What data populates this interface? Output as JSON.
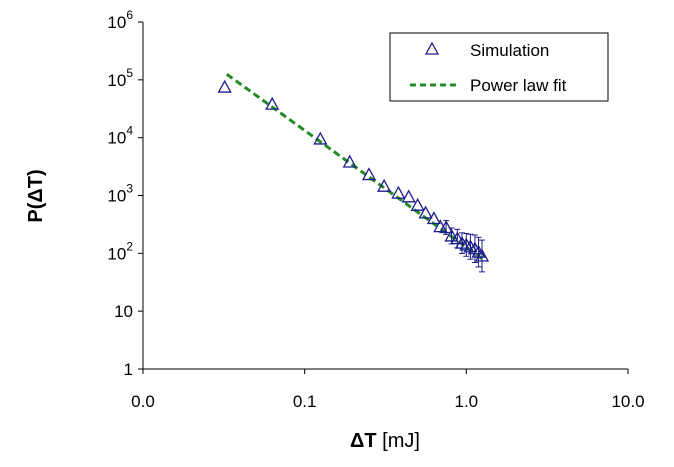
{
  "chart_data": {
    "type": "scatter",
    "xscale": "log",
    "yscale": "log",
    "xlim": [
      0.01,
      10
    ],
    "ylim": [
      1,
      1000000
    ],
    "xticks": [
      {
        "value": 0.01,
        "label": "0.0"
      },
      {
        "value": 0.1,
        "label": "0.1"
      },
      {
        "value": 1,
        "label": "1.0"
      },
      {
        "value": 10,
        "label": "10.0"
      }
    ],
    "yticks": [
      {
        "value": 1,
        "base": "1",
        "exp": ""
      },
      {
        "value": 10,
        "base": "10",
        "exp": ""
      },
      {
        "value": 100,
        "base": "10",
        "exp": "2"
      },
      {
        "value": 1000,
        "base": "10",
        "exp": "3"
      },
      {
        "value": 10000,
        "base": "10",
        "exp": "4"
      },
      {
        "value": 100000,
        "base": "10",
        "exp": "5"
      },
      {
        "value": 1000000,
        "base": "10",
        "exp": "6"
      }
    ],
    "xlabel": "ΔT [mJ]",
    "xlabel_parts": {
      "symbol": "ΔT",
      "unit": " [mJ]"
    },
    "ylabel": "P(ΔT)",
    "grid": false,
    "legend_position": "top-right",
    "series": [
      {
        "name": "Simulation",
        "marker": "triangle-open",
        "color": "#1c1c8c",
        "points": [
          {
            "x": 0.032,
            "y": 75000
          },
          {
            "x": 0.063,
            "y": 38000
          },
          {
            "x": 0.125,
            "y": 9500
          },
          {
            "x": 0.19,
            "y": 3800
          },
          {
            "x": 0.25,
            "y": 2300
          },
          {
            "x": 0.31,
            "y": 1450
          },
          {
            "x": 0.38,
            "y": 1100
          },
          {
            "x": 0.44,
            "y": 950
          },
          {
            "x": 0.5,
            "y": 680
          },
          {
            "x": 0.56,
            "y": 500
          },
          {
            "x": 0.63,
            "y": 400
          },
          {
            "x": 0.69,
            "y": 290
          },
          {
            "x": 0.75,
            "y": 280
          },
          {
            "x": 0.81,
            "y": 200
          },
          {
            "x": 0.88,
            "y": 180
          },
          {
            "x": 0.94,
            "y": 150
          },
          {
            "x": 1.0,
            "y": 140
          },
          {
            "x": 1.06,
            "y": 130
          },
          {
            "x": 1.13,
            "y": 120
          },
          {
            "x": 1.19,
            "y": 105
          },
          {
            "x": 1.25,
            "y": 90
          }
        ]
      },
      {
        "name": "Power law fit",
        "style": "dashed-line",
        "color": "#228b22",
        "x": [
          0.033,
          1.3
        ],
        "y": [
          125000,
          75
        ]
      }
    ]
  }
}
